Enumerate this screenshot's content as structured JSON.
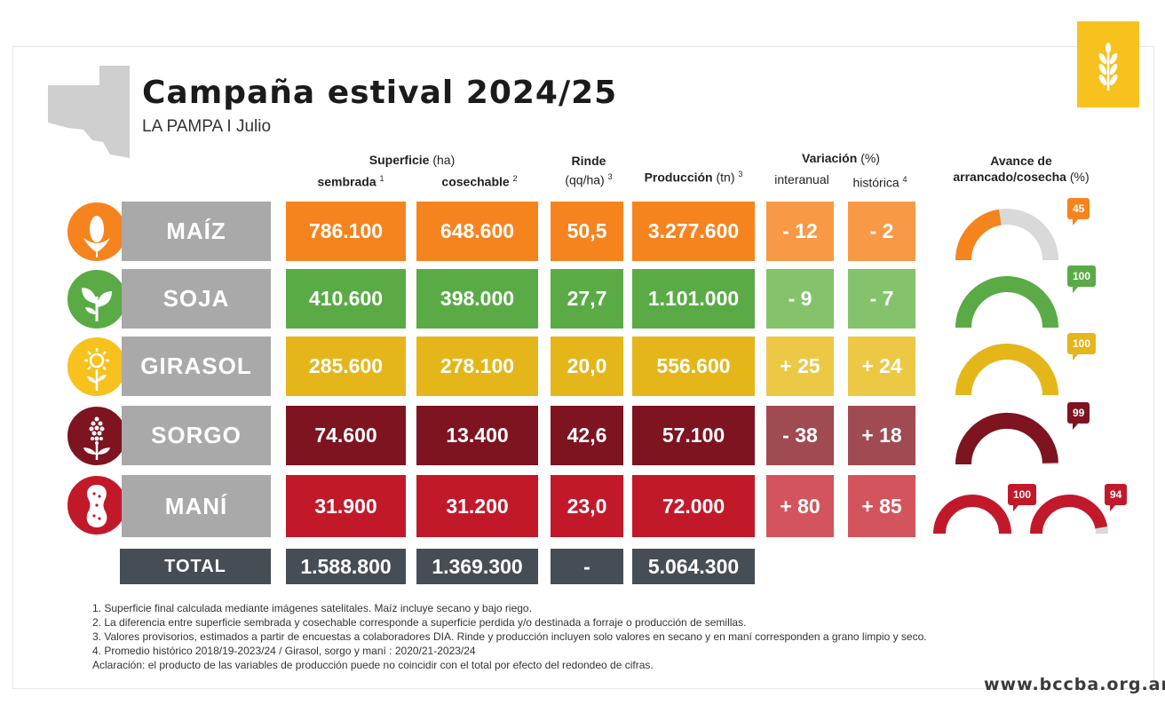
{
  "header": {
    "title": "Campaña estival 2024/25",
    "subtitle": "LA PAMPA I Julio"
  },
  "columns": {
    "superficie": "Superficie",
    "superficie_unit": "(ha)",
    "sembrada": "sembrada",
    "sembrada_note": "1",
    "cosechable": "cosechable",
    "cosechable_note": "2",
    "rinde": "Rinde",
    "rinde_unit": "(qq/ha)",
    "rinde_note": "3",
    "produccion": "Producción",
    "produccion_unit": "(tn)",
    "produccion_note": "3",
    "variacion": "Variación",
    "variacion_unit": "(%)",
    "interanual": "interanual",
    "historica": "histórica",
    "historica_note": "4",
    "avance_line1": "Avance de",
    "avance_line2": "arrancado/cosecha",
    "avance_unit": "(%)"
  },
  "rows": [
    {
      "crop": "MAÍZ",
      "icon": "corn-icon",
      "sembrada": "786.100",
      "cosechable": "648.600",
      "rinde": "50,5",
      "produccion": "3.277.600",
      "interanual": "- 12",
      "historica": "- 2",
      "avance": [
        {
          "value": 45,
          "label": "45"
        }
      ],
      "color": "#f5841f",
      "var_color": "#f89a45",
      "icon_bg": "#f5841f"
    },
    {
      "crop": "SOJA",
      "icon": "soy-icon",
      "sembrada": "410.600",
      "cosechable": "398.000",
      "rinde": "27,7",
      "produccion": "1.101.000",
      "interanual": "- 9",
      "historica": "- 7",
      "avance": [
        {
          "value": 100,
          "label": "100"
        }
      ],
      "color": "#5aab46",
      "var_color": "#84c36b",
      "icon_bg": "#5aab46"
    },
    {
      "crop": "GIRASOL",
      "icon": "sunflower-icon",
      "sembrada": "285.600",
      "cosechable": "278.100",
      "rinde": "20,0",
      "produccion": "556.600",
      "interanual": "+ 25",
      "historica": "+ 24",
      "avance": [
        {
          "value": 100,
          "label": "100"
        }
      ],
      "color": "#e4b619",
      "var_color": "#ecc845",
      "icon_bg": "#f7c21e"
    },
    {
      "crop": "SORGO",
      "icon": "sorghum-icon",
      "sembrada": "74.600",
      "cosechable": "13.400",
      "rinde": "42,6",
      "produccion": "57.100",
      "interanual": "- 38",
      "historica": "+ 18",
      "avance": [
        {
          "value": 99,
          "label": "99"
        }
      ],
      "color": "#7d1420",
      "var_color": "#a04a52",
      "icon_bg": "#7d1420"
    },
    {
      "crop": "MANÍ",
      "icon": "peanut-icon",
      "sembrada": "31.900",
      "cosechable": "31.200",
      "rinde": "23,0",
      "produccion": "72.000",
      "interanual": "+ 80",
      "historica": "+ 85",
      "avance": [
        {
          "value": 100,
          "label": "100"
        },
        {
          "value": 94,
          "label": "94"
        }
      ],
      "color": "#c2192a",
      "var_color": "#d4545d",
      "icon_bg": "#c2192a"
    }
  ],
  "total": {
    "label": "TOTAL",
    "sembrada": "1.588.800",
    "cosechable": "1.369.300",
    "rinde": "-",
    "produccion": "5.064.300"
  },
  "notes": [
    "1. Superficie final calculada mediante imágenes satelitales. Maíz incluye secano y bajo riego.",
    "2. La diferencia entre superficie sembrada y cosechable corresponde a superficie perdida y/o destinada a forraje o producción de semillas.",
    "3. Valores provisorios, estimados a partir de encuestas a colaboradores DIA.  Rinde y producción incluyen solo valores en secano y en maní corresponden a grano limpio y seco.",
    "4. Promedio histórico 2018/19-2023/24 / Girasol, sorgo y maní : 2020/21-2023/24",
    "Aclaración: el producto de las variables de producción puede no coincidir con el total por efecto del redondeo de cifras."
  ],
  "footer": {
    "website": "www.bccba.org.ar"
  },
  "colors": {
    "gauge_track": "#d9d9d9",
    "label_bg": "#a9a9aa",
    "total_bg": "#474d55",
    "brand_yellow": "#f7c21e"
  }
}
